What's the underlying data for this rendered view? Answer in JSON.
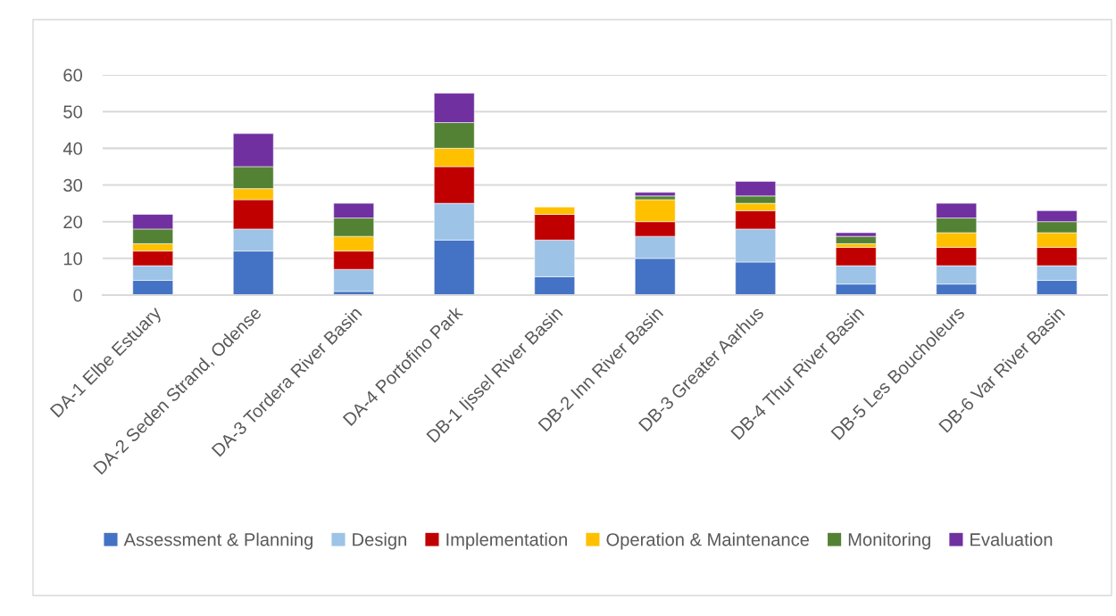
{
  "chart_data": {
    "type": "bar",
    "stacked": true,
    "categories": [
      "DA-1 Elbe Estuary",
      "DA-2 Seden Strand, Odense",
      "DA-3 Tordera River Basin",
      "DA-4 Portofino Park",
      "DB-1 Ijssel River Basin",
      "DB-2 Inn River Basin",
      "DB-3 Greater Aarhus",
      "DB-4 Thur River Basin",
      "DB-5 Les Boucholeurs",
      "DB-6 Var River Basin"
    ],
    "series": [
      {
        "name": "Assessment & Planning",
        "color": "#4472c4",
        "values": [
          4,
          12,
          1,
          15,
          5,
          10,
          9,
          3,
          3,
          4
        ]
      },
      {
        "name": "Design",
        "color": "#9dc3e6",
        "values": [
          4,
          6,
          6,
          10,
          10,
          6,
          9,
          5,
          5,
          4
        ]
      },
      {
        "name": "Implementation",
        "color": "#c00000",
        "values": [
          4,
          8,
          5,
          10,
          7,
          4,
          5,
          5,
          5,
          5
        ]
      },
      {
        "name": "Operation & Maintenance",
        "color": "#ffc000",
        "values": [
          2,
          3,
          4,
          5,
          2,
          6,
          2,
          1,
          4,
          4
        ]
      },
      {
        "name": "Monitoring",
        "color": "#548235",
        "values": [
          4,
          6,
          5,
          7,
          0,
          1,
          2,
          2,
          4,
          3
        ]
      },
      {
        "name": "Evaluation",
        "color": "#7030a0",
        "values": [
          4,
          9,
          4,
          8,
          0,
          1,
          4,
          1,
          4,
          3
        ]
      }
    ],
    "ylim": [
      0,
      60
    ],
    "yticks": [
      0,
      10,
      20,
      30,
      40,
      50,
      60
    ],
    "grid": "y",
    "legend": "bottom"
  }
}
